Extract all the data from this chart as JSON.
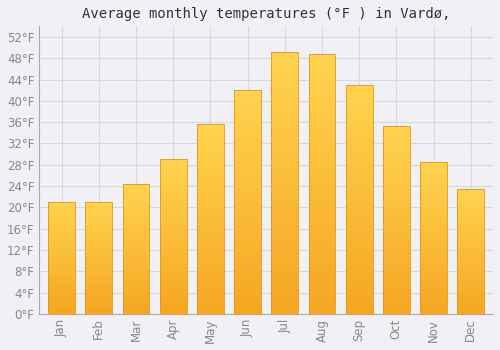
{
  "months": [
    "Jan",
    "Feb",
    "Mar",
    "Apr",
    "May",
    "Jun",
    "Jul",
    "Aug",
    "Sep",
    "Oct",
    "Nov",
    "Dec"
  ],
  "values": [
    21.0,
    21.0,
    24.3,
    29.0,
    35.6,
    42.1,
    49.1,
    48.7,
    43.0,
    35.2,
    28.6,
    23.5
  ],
  "bar_color_top": "#FFD44F",
  "bar_color_bottom": "#F5A623",
  "bar_edge_color": "#E8960A",
  "title": "Average monthly temperatures (°F ) in Vardø,",
  "title_fontsize": 10,
  "ylim_min": 0,
  "ylim_max": 54,
  "ytick_step": 4,
  "background_color": "#f0f0f5",
  "plot_bg_color": "#f0f0f5",
  "grid_color": "#d8d8e0",
  "tick_label_color": "#888888",
  "title_color": "#333333"
}
